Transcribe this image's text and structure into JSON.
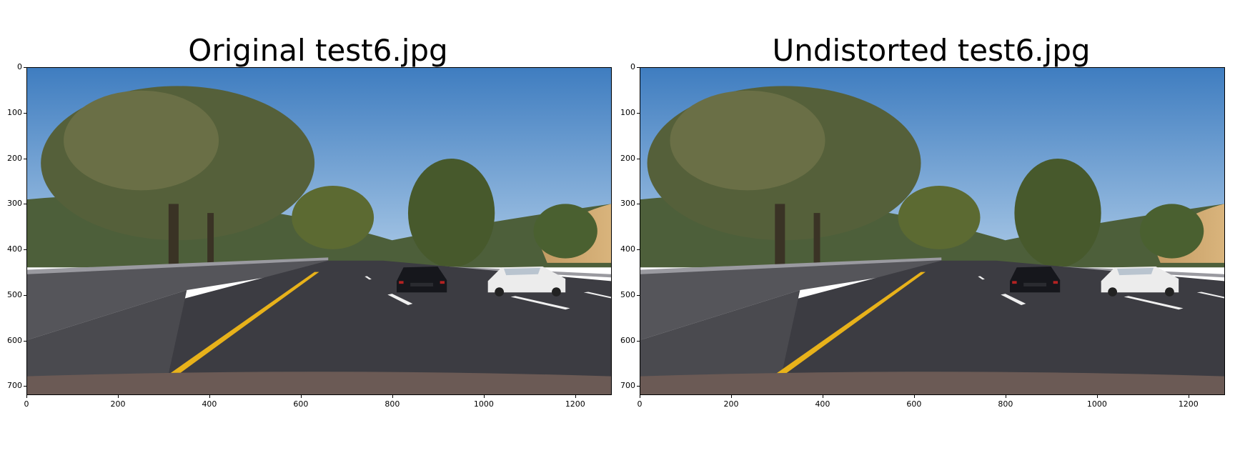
{
  "panels": [
    {
      "title": "Original test6.jpg",
      "x_ticks": [
        "0",
        "200",
        "400",
        "600",
        "800",
        "1000",
        "1200"
      ],
      "y_ticks": [
        "0",
        "100",
        "200",
        "300",
        "400",
        "500",
        "600",
        "700"
      ]
    },
    {
      "title": "Undistorted test6.jpg",
      "x_ticks": [
        "0",
        "200",
        "400",
        "600",
        "800",
        "1000",
        "1200"
      ],
      "y_ticks": [
        "0",
        "100",
        "200",
        "300",
        "400",
        "500",
        "600",
        "700"
      ]
    }
  ],
  "colors": {
    "sky": "#5b8fc7",
    "road": "#3c3c42",
    "lane_yellow": "#e8b21a",
    "tree": "#4a5a2a",
    "barrier": "#55555a",
    "hood": "#6b5a55"
  }
}
